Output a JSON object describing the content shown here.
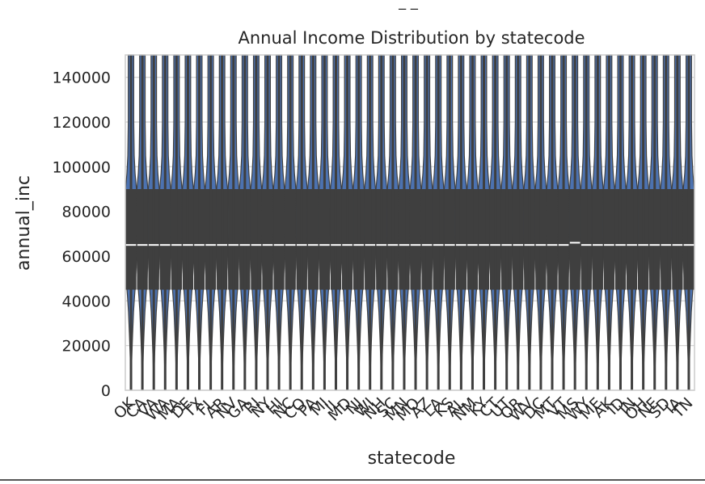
{
  "chart_data": {
    "type": "violin",
    "title": "Annual Income Distribution by statecode",
    "xlabel": "statecode",
    "ylabel": "annual_inc",
    "top_label": "_ _",
    "ylim": [
      0,
      150000
    ],
    "yticks": [
      0,
      20000,
      40000,
      60000,
      80000,
      100000,
      120000,
      140000
    ],
    "grid": true,
    "categories": [
      "OK",
      "CA",
      "VA",
      "WA",
      "MA",
      "DE",
      "TX",
      "FL",
      "AR",
      "NV",
      "GA",
      "RI",
      "NY",
      "HI",
      "NC",
      "CO",
      "PA",
      "MI",
      "IL",
      "MD",
      "NJ",
      "WI",
      "NH",
      "SC",
      "MN",
      "MO",
      "AZ",
      "LA",
      "KS",
      "AL",
      "NM",
      "KY",
      "CT",
      "UT",
      "OR",
      "WV",
      "DC",
      "MT",
      "VT",
      "MS",
      "WY",
      "ME",
      "AK",
      "ID",
      "IN",
      "OH",
      "NE",
      "SD",
      "IA",
      "TN"
    ],
    "medians": [
      65000,
      65000,
      65000,
      65000,
      65000,
      65000,
      65000,
      65000,
      65000,
      65000,
      65000,
      65000,
      65000,
      65000,
      65000,
      65000,
      65000,
      65000,
      65000,
      65000,
      65000,
      65000,
      65000,
      65000,
      65000,
      65000,
      65000,
      65000,
      65000,
      65000,
      65000,
      65000,
      65000,
      65000,
      65000,
      65000,
      65000,
      65000,
      65000,
      66000,
      65000,
      65000,
      65000,
      65000,
      65000,
      65000,
      65000,
      65000,
      65000,
      65000
    ],
    "q1": 45000,
    "q3": 90000,
    "violin_color": "#4c72b0",
    "box_color": "#3f3f3f"
  }
}
